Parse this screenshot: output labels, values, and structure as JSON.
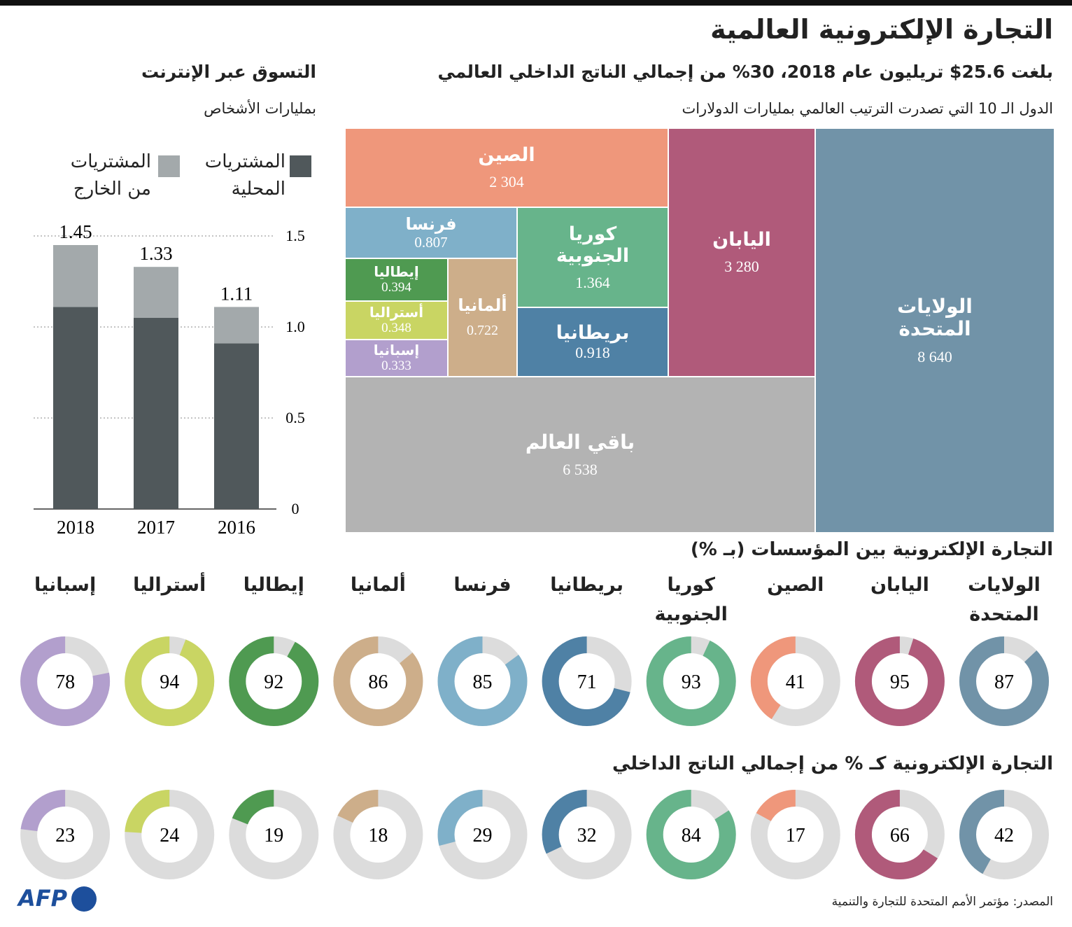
{
  "title": "التجارة الإلكترونية العالمية",
  "chart_data": [
    {
      "type": "treemap",
      "title": "بلغت 25.6$ تريليون عام 2018، 30% من إجمالي الناتج الداخلي العالمي",
      "subtitle": "الدول الـ 10 التي تصدرت الترتيب العالمي بمليارات الدولارات",
      "categories": [
        "الولايات المتحدة",
        "اليابان",
        "الصين",
        "باقي العالم",
        "كوريا الجنوبية",
        "بريطانيا",
        "فرنسا",
        "ألمانيا",
        "إيطاليا",
        "أستراليا",
        "إسبانيا"
      ],
      "values": [
        8640,
        3280,
        2304,
        6538,
        1.364,
        0.918,
        0.807,
        0.722,
        0.394,
        0.348,
        0.333
      ],
      "value_labels": [
        "8 640",
        "3 280",
        "2 304",
        "6 538",
        "1.364",
        "0.918",
        "0.807",
        "0.722",
        "0.394",
        "0.348",
        "0.333"
      ],
      "colors": [
        "#7193a8",
        "#b05a7a",
        "#ef977b",
        "#b3b3b3",
        "#67b48b",
        "#4f81a5",
        "#7fb0c9",
        "#cdae8a",
        "#4f9a51",
        "#c9d563",
        "#b29fcd"
      ]
    },
    {
      "type": "bar",
      "stacked": true,
      "title": "التسوق عبر الإنترنت",
      "subtitle": "بمليارات الأشخاص",
      "categories": [
        "2016",
        "2017",
        "2018"
      ],
      "series": [
        {
          "name": "المشتريات المحلية",
          "color": "#50585b",
          "values": [
            0.91,
            1.05,
            1.11
          ]
        },
        {
          "name": "المشتريات من الخارج",
          "color": "#a3a9ab",
          "values": [
            0.2,
            0.28,
            0.34
          ]
        }
      ],
      "totals": [
        1.11,
        1.33,
        1.45
      ],
      "ylim": [
        0,
        1.5
      ],
      "yticks": [
        0,
        0.5,
        {
          "value": 1,
          "label": "1.0"
        },
        1.5
      ],
      "grid": true
    },
    {
      "type": "donut",
      "title": "التجارة الإلكترونية بين المؤسسات (بـ %)",
      "categories": [
        "الولايات المتحدة",
        "اليابان",
        "الصين",
        "كوريا الجنوبية",
        "بريطانيا",
        "فرنسا",
        "ألمانيا",
        "إيطاليا",
        "أستراليا",
        "إسبانيا"
      ],
      "values": [
        87,
        95,
        41,
        93,
        71,
        85,
        86,
        92,
        94,
        78
      ],
      "colors": [
        "#7193a8",
        "#b05a7a",
        "#ef977b",
        "#67b48b",
        "#4f81a5",
        "#7fb0c9",
        "#cdae8a",
        "#4f9a51",
        "#c9d563",
        "#b29fcd"
      ]
    },
    {
      "type": "donut",
      "title": "التجارة الإلكترونية كـ % من إجمالي الناتج الداخلي",
      "values": [
        42,
        66,
        17,
        84,
        32,
        29,
        18,
        19,
        24,
        23
      ],
      "colors": [
        "#7193a8",
        "#b05a7a",
        "#ef977b",
        "#67b48b",
        "#4f81a5",
        "#7fb0c9",
        "#cdae8a",
        "#4f9a51",
        "#c9d563",
        "#b29fcd"
      ]
    }
  ],
  "source": "المصدر: مؤتمر الأمم المتحدة للتجارة والتنمية",
  "logo": "AFP"
}
